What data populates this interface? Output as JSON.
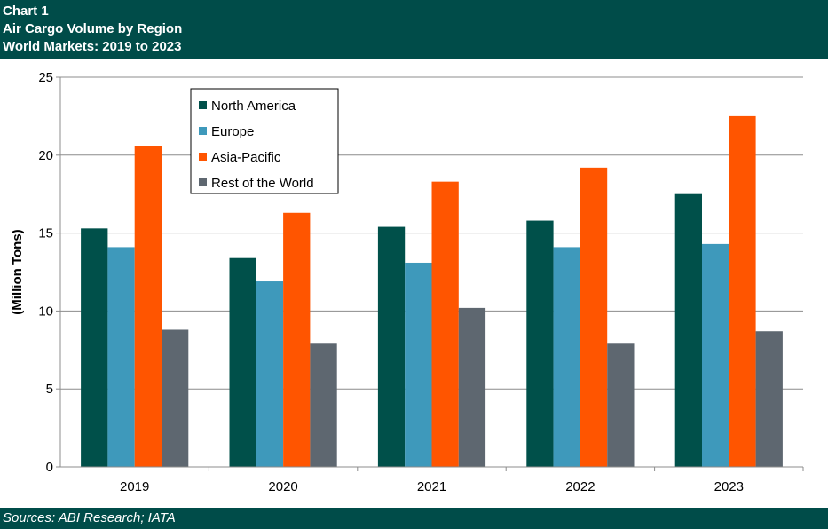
{
  "header": {
    "line1": "Chart 1",
    "line2": "Air Cargo Volume by Region",
    "line3": "World Markets: 2019 to 2023"
  },
  "footer": {
    "source": "Sources: ABI Research; IATA"
  },
  "colors": {
    "header_bg": "#004c49",
    "north_america": "#00504a",
    "europe": "#3e99bb",
    "asia_pacific": "#ff5500",
    "rest_of_world": "#5e6770"
  },
  "chart_data": {
    "type": "bar",
    "title": "",
    "xlabel": "",
    "ylabel": "(Million Tons)",
    "categories": [
      "2019",
      "2020",
      "2021",
      "2022",
      "2023"
    ],
    "ylim": [
      0,
      25
    ],
    "yticks": [
      0,
      5,
      10,
      15,
      20,
      25
    ],
    "grid": true,
    "legend_position": "top-left",
    "series": [
      {
        "name": "North America",
        "color": "#00504a",
        "values": [
          15.3,
          13.4,
          15.4,
          15.8,
          17.5
        ]
      },
      {
        "name": "Europe",
        "color": "#3e99bb",
        "values": [
          14.1,
          11.9,
          13.1,
          14.1,
          14.3
        ]
      },
      {
        "name": "Asia-Pacific",
        "color": "#ff5500",
        "values": [
          20.6,
          16.3,
          18.3,
          19.2,
          22.5
        ]
      },
      {
        "name": "Rest of the World",
        "color": "#5e6770",
        "values": [
          8.8,
          7.9,
          10.2,
          7.9,
          8.7
        ]
      }
    ]
  }
}
